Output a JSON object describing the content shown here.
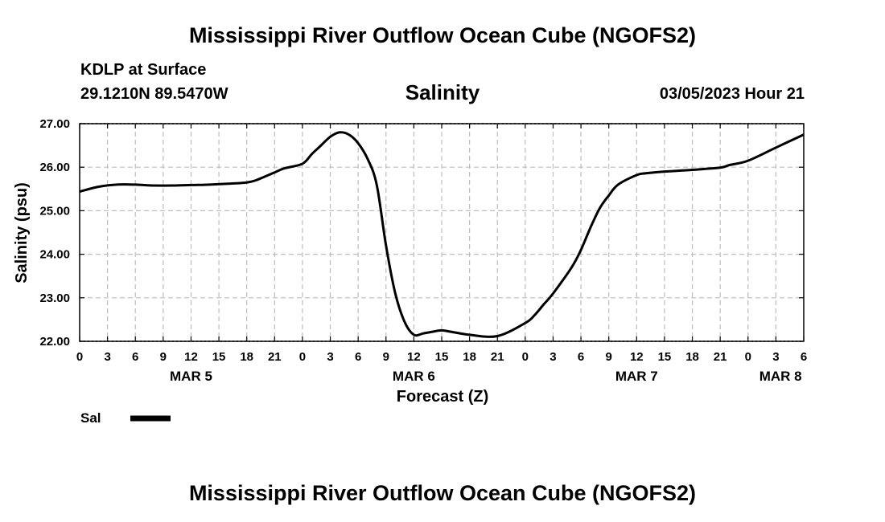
{
  "page_title": "Mississippi River Outflow Ocean Cube (NGOFS2)",
  "footer_title": "Mississippi River Outflow Ocean Cube (NGOFS2)",
  "station": "KDLP at Surface",
  "coords": "29.1210N  89.5470W",
  "timestamp": "03/05/2023 Hour 21",
  "colors": {
    "line": "#000000",
    "grid": "#bdbdbd"
  },
  "chart_data": {
    "type": "line",
    "title": "Salinity",
    "xlabel": "Forecast (Z)",
    "ylabel": "Salinity (psu)",
    "ylim": [
      22.0,
      27.0
    ],
    "yticks": [
      22.0,
      23.0,
      24.0,
      25.0,
      26.0,
      27.0
    ],
    "ytick_labels": [
      "22.00",
      "23.00",
      "24.00",
      "25.00",
      "26.00",
      "27.00"
    ],
    "xlim": [
      0,
      78
    ],
    "xticks": [
      0,
      3,
      6,
      9,
      12,
      15,
      18,
      21,
      24,
      27,
      30,
      33,
      36,
      39,
      42,
      45,
      48,
      51,
      54,
      57,
      60,
      63,
      66,
      69,
      72,
      75,
      78
    ],
    "xtick_labels": [
      "0",
      "3",
      "6",
      "9",
      "12",
      "15",
      "18",
      "21",
      "0",
      "3",
      "6",
      "9",
      "12",
      "15",
      "18",
      "21",
      "0",
      "3",
      "6",
      "9",
      "12",
      "15",
      "18",
      "21",
      "0",
      "3",
      "6"
    ],
    "day_labels": [
      {
        "label": "MAR 5",
        "hour": 12
      },
      {
        "label": "MAR 6",
        "hour": 36
      },
      {
        "label": "MAR 7",
        "hour": 60
      },
      {
        "label": "MAR 8",
        "hour": 75.5
      }
    ],
    "legend": [
      {
        "name": "Sal",
        "style": "solid-thick"
      }
    ],
    "series": [
      {
        "name": "Sal",
        "x": [
          0,
          2,
          4,
          6,
          8,
          10,
          12,
          14,
          16,
          18,
          19,
          21,
          22,
          24,
          25,
          26,
          27,
          28,
          29,
          30,
          31,
          32,
          33,
          34,
          35,
          36,
          37,
          38,
          39,
          40,
          42,
          45,
          48,
          49,
          50,
          51,
          53,
          54,
          55,
          56,
          57,
          58,
          60,
          61,
          63,
          66,
          69,
          70,
          72,
          75,
          78
        ],
        "y": [
          25.44,
          25.55,
          25.6,
          25.6,
          25.58,
          25.58,
          25.59,
          25.6,
          25.62,
          25.65,
          25.7,
          25.88,
          25.97,
          26.08,
          26.3,
          26.5,
          26.7,
          26.8,
          26.75,
          26.55,
          26.2,
          25.6,
          24.2,
          23.1,
          22.45,
          22.15,
          22.18,
          22.22,
          22.25,
          22.22,
          22.15,
          22.12,
          22.42,
          22.6,
          22.85,
          23.1,
          23.7,
          24.1,
          24.6,
          25.05,
          25.35,
          25.6,
          25.82,
          25.86,
          25.9,
          25.94,
          25.99,
          26.05,
          26.15,
          26.45,
          26.75
        ]
      }
    ]
  }
}
